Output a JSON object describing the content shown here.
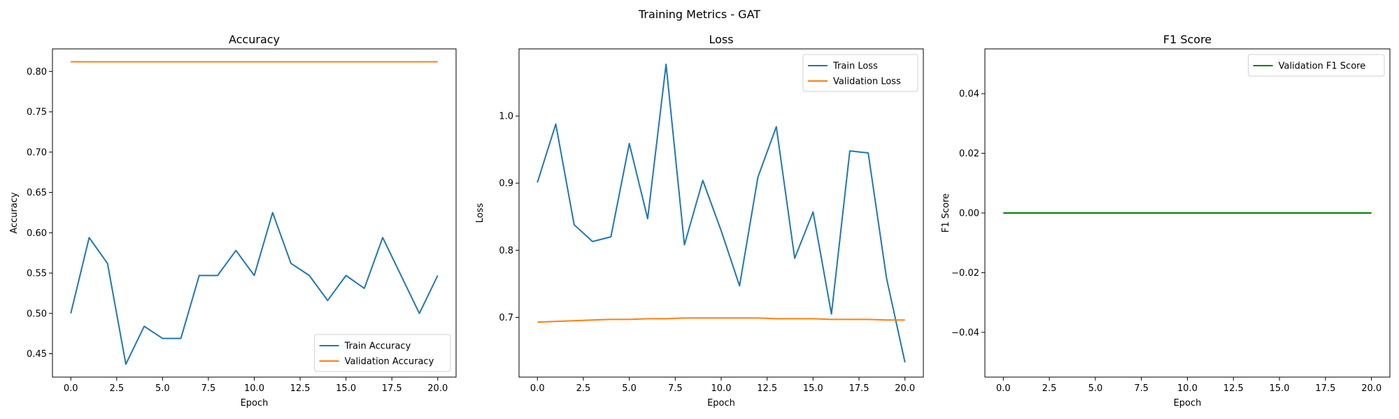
{
  "suptitle": "Training Metrics - GAT",
  "colors": {
    "blue": "#1f77b4",
    "orange": "#ff7f0e",
    "green": "#008000"
  },
  "chart_data": [
    {
      "type": "line",
      "title": "Accuracy",
      "xlabel": "Epoch",
      "ylabel": "Accuracy",
      "xlim": [
        -1,
        21
      ],
      "ylim": [
        0.421,
        0.828
      ],
      "xticks": [
        0,
        2.5,
        5,
        7.5,
        10,
        12.5,
        15,
        17.5,
        20
      ],
      "xtick_labels": [
        "0.0",
        "2.5",
        "5.0",
        "7.5",
        "10.0",
        "12.5",
        "15.0",
        "17.5",
        "20.0"
      ],
      "yticks": [
        0.45,
        0.5,
        0.55,
        0.6,
        0.65,
        0.7,
        0.75,
        0.8
      ],
      "ytick_labels": [
        "0.45",
        "0.50",
        "0.55",
        "0.60",
        "0.65",
        "0.70",
        "0.75",
        "0.80"
      ],
      "legend": "lower right",
      "x": [
        0,
        1,
        2,
        3,
        4,
        5,
        6,
        7,
        8,
        9,
        10,
        11,
        12,
        13,
        14,
        15,
        16,
        17,
        18,
        19,
        20
      ],
      "series": [
        {
          "name": "Train Accuracy",
          "color": "#1f77b4",
          "values": [
            0.5,
            0.594,
            0.562,
            0.437,
            0.484,
            0.469,
            0.469,
            0.547,
            0.547,
            0.578,
            0.547,
            0.625,
            0.562,
            0.547,
            0.516,
            0.547,
            0.531,
            0.594,
            0.547,
            0.5,
            0.547
          ]
        },
        {
          "name": "Validation Accuracy",
          "color": "#ff7f0e",
          "values": [
            0.812,
            0.812,
            0.812,
            0.812,
            0.812,
            0.812,
            0.812,
            0.812,
            0.812,
            0.812,
            0.812,
            0.812,
            0.812,
            0.812,
            0.812,
            0.812,
            0.812,
            0.812,
            0.812,
            0.812,
            0.812
          ]
        }
      ]
    },
    {
      "type": "line",
      "title": "Loss",
      "xlabel": "Epoch",
      "ylabel": "Loss",
      "xlim": [
        -1,
        21
      ],
      "ylim": [
        0.611,
        1.1
      ],
      "xticks": [
        0,
        2.5,
        5,
        7.5,
        10,
        12.5,
        15,
        17.5,
        20
      ],
      "xtick_labels": [
        "0.0",
        "2.5",
        "5.0",
        "7.5",
        "10.0",
        "12.5",
        "15.0",
        "17.5",
        "20.0"
      ],
      "yticks": [
        0.7,
        0.8,
        0.9,
        1.0
      ],
      "ytick_labels": [
        "0.7",
        "0.8",
        "0.9",
        "1.0"
      ],
      "legend": "upper right",
      "x": [
        0,
        1,
        2,
        3,
        4,
        5,
        6,
        7,
        8,
        9,
        10,
        11,
        12,
        13,
        14,
        15,
        16,
        17,
        18,
        19,
        20
      ],
      "series": [
        {
          "name": "Train Loss",
          "color": "#1f77b4",
          "values": [
            0.901,
            0.988,
            0.838,
            0.813,
            0.82,
            0.959,
            0.847,
            1.077,
            0.808,
            0.904,
            0.829,
            0.747,
            0.909,
            0.984,
            0.788,
            0.857,
            0.705,
            0.948,
            0.945,
            0.758,
            0.633
          ]
        },
        {
          "name": "Validation Loss",
          "color": "#ff7f0e",
          "values": [
            0.693,
            0.694,
            0.695,
            0.696,
            0.697,
            0.697,
            0.698,
            0.698,
            0.699,
            0.699,
            0.699,
            0.699,
            0.699,
            0.698,
            0.698,
            0.698,
            0.697,
            0.697,
            0.697,
            0.696,
            0.696
          ]
        }
      ]
    },
    {
      "type": "line",
      "title": "F1 Score",
      "xlabel": "Epoch",
      "ylabel": "F1 Score",
      "xlim": [
        -1,
        21
      ],
      "ylim": [
        -0.055,
        0.055
      ],
      "xticks": [
        0,
        2.5,
        5,
        7.5,
        10,
        12.5,
        15,
        17.5,
        20
      ],
      "xtick_labels": [
        "0.0",
        "2.5",
        "5.0",
        "7.5",
        "10.0",
        "12.5",
        "15.0",
        "17.5",
        "20.0"
      ],
      "yticks": [
        -0.04,
        -0.02,
        0,
        0.02,
        0.04
      ],
      "ytick_labels": [
        "−0.04",
        "−0.02",
        "0.00",
        "0.02",
        "0.04"
      ],
      "legend": "upper right",
      "x": [
        0,
        1,
        2,
        3,
        4,
        5,
        6,
        7,
        8,
        9,
        10,
        11,
        12,
        13,
        14,
        15,
        16,
        17,
        18,
        19,
        20
      ],
      "series": [
        {
          "name": "Validation F1 Score",
          "color": "#008000",
          "values": [
            0,
            0,
            0,
            0,
            0,
            0,
            0,
            0,
            0,
            0,
            0,
            0,
            0,
            0,
            0,
            0,
            0,
            0,
            0,
            0,
            0
          ]
        }
      ]
    }
  ]
}
